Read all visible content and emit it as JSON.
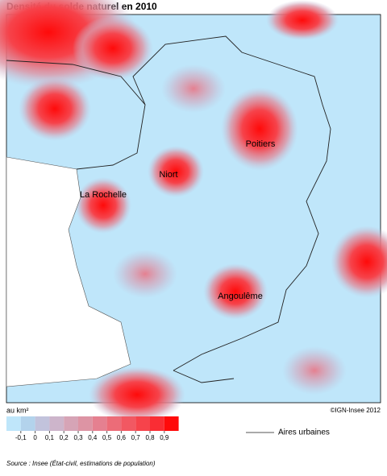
{
  "title": "Densité du solde naturel en 2010",
  "cities": [
    "Poitiers",
    "Niort",
    "La Rochelle",
    "Angoulême"
  ],
  "legend": {
    "unit": "au km²",
    "colors": [
      "#bfe6fa",
      "#b3d3ec",
      "#c2c3dc",
      "#cdb5cb",
      "#d6a4b6",
      "#dd94a4",
      "#e58090",
      "#ec6c78",
      "#f25862",
      "#f6434b",
      "#fa2d34",
      "#ff0a0a"
    ],
    "ticks": [
      {
        "value": -0.1,
        "label": "-0,1"
      },
      0,
      {
        "value": 0.1,
        "label": "0,1"
      },
      {
        "value": 0.2,
        "label": "0,2"
      },
      {
        "value": 0.3,
        "label": "0,3"
      },
      {
        "value": 0.4,
        "label": "0,4"
      },
      {
        "value": 0.5,
        "label": "0,5"
      },
      {
        "value": 0.6,
        "label": "0,6"
      },
      {
        "value": 0.7,
        "label": "0,7"
      },
      {
        "value": 0.8,
        "label": "0,8"
      },
      {
        "value": 0.9,
        "label": "0,9"
      }
    ],
    "line_label": "Aires urbaines"
  },
  "copyright": "©IGN-Insee 2012",
  "source": "Source : Insee (État-civil, estimations de population)"
}
